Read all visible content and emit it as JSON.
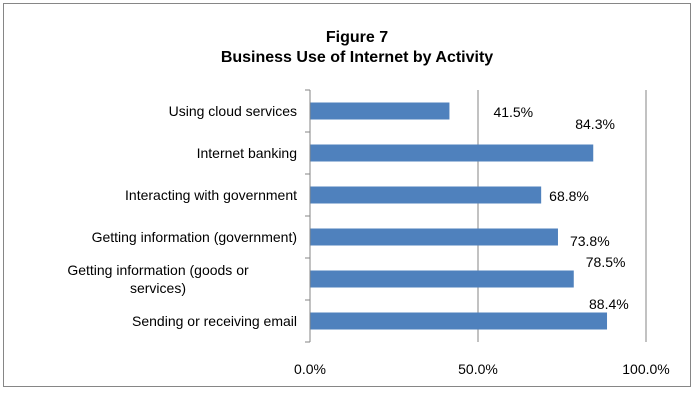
{
  "chart_data": {
    "type": "bar",
    "orientation": "horizontal",
    "title": "Figure 7",
    "subtitle": "Business Use of Internet by Activity",
    "categories": [
      [
        "Using cloud services"
      ],
      [
        "Internet banking"
      ],
      [
        "Interacting with government"
      ],
      [
        "Getting information (government)"
      ],
      [
        "Getting information (goods or",
        "services)"
      ],
      [
        "Sending or receiving email"
      ]
    ],
    "values": [
      41.5,
      84.3,
      68.8,
      73.8,
      78.5,
      88.4
    ],
    "data_labels": [
      "41.5%",
      "84.3%",
      "68.8%",
      "73.8%",
      "78.5%",
      "88.4%"
    ],
    "x_ticks": [
      {
        "value": 0,
        "label": "0.0%"
      },
      {
        "value": 50,
        "label": "50.0%"
      },
      {
        "value": 100,
        "label": "100.0%"
      }
    ],
    "xlim": [
      0,
      100
    ],
    "grid": "vertical major gridlines",
    "legend": "none",
    "colors": {
      "bar": "#4F81BD",
      "gridline": "#868686",
      "axis": "#868686",
      "text": "#000000",
      "border": "#868686"
    }
  }
}
